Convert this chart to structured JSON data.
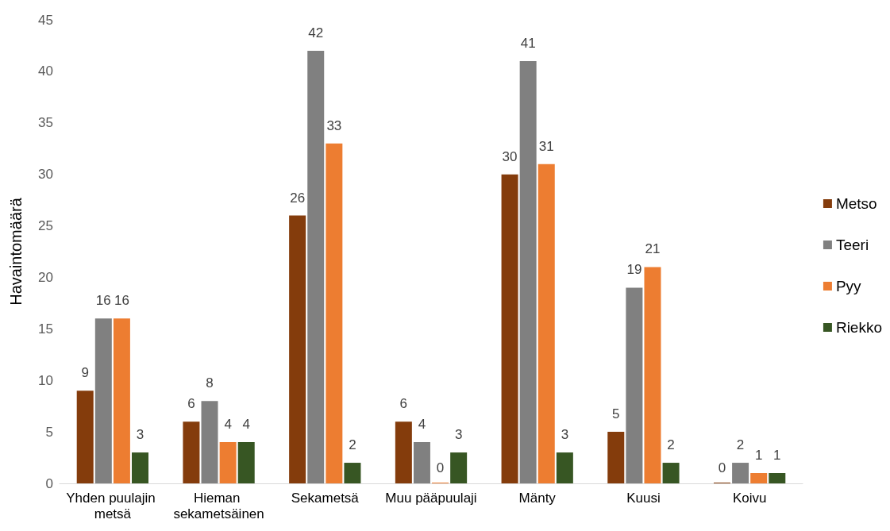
{
  "chart_data": {
    "type": "bar",
    "ylabel": "Havaintomäärä",
    "categories": [
      "Yhden puulajin metsä",
      "Hieman sekametsäinen",
      "Sekametsä",
      "Muu pääpuulaji",
      "Mänty",
      "Kuusi",
      "Koivu"
    ],
    "series": [
      {
        "name": "Metso",
        "color": "#843c0c",
        "values": [
          9,
          6,
          26,
          6,
          30,
          5,
          0
        ]
      },
      {
        "name": "Teeri",
        "color": "#808080",
        "values": [
          16,
          8,
          42,
          4,
          41,
          19,
          2
        ]
      },
      {
        "name": "Pyy",
        "color": "#ed7d31",
        "values": [
          16,
          4,
          33,
          0,
          31,
          21,
          1
        ]
      },
      {
        "name": "Riekko",
        "color": "#375623",
        "values": [
          3,
          4,
          2,
          3,
          3,
          2,
          1
        ]
      }
    ],
    "ylim": [
      0,
      45
    ],
    "yticks": [
      0,
      5,
      10,
      15,
      20,
      25,
      30,
      35,
      40,
      45
    ],
    "grid": false,
    "legend": "right",
    "data_labels": true
  }
}
